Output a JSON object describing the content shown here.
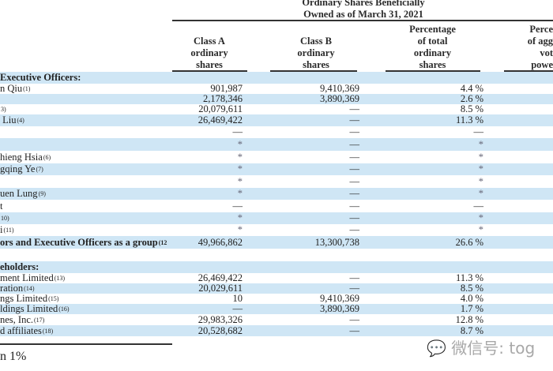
{
  "header": {
    "group_title_line1": "Ordinary Shares Beneficially",
    "group_title_line2": "Owned as of March 31, 2021",
    "columns": [
      {
        "lines": [
          "Class A",
          "ordinary",
          "shares"
        ]
      },
      {
        "lines": [
          "Class B",
          "ordinary",
          "shares"
        ]
      },
      {
        "lines": [
          "Percentage",
          "of total",
          "ordinary",
          "shares"
        ]
      },
      {
        "lines": [
          "Perce",
          "of agg",
          "vot",
          "powe"
        ]
      }
    ]
  },
  "rows": [
    {
      "name": "Executive Officers:",
      "sup": "",
      "a": "",
      "b": "",
      "p": "",
      "bold": true
    },
    {
      "name": "n Qiu",
      "sup": "(1)",
      "a": "901,987",
      "b": "9,410,369",
      "p": "4.4 %"
    },
    {
      "name": "",
      "sup": "",
      "a": "2,178,346",
      "b": "3,890,369",
      "p": "2.6 %"
    },
    {
      "name": "",
      "sup": "3)",
      "a": "20,079,611",
      "b": "—",
      "p": "8.5 %"
    },
    {
      "name": " Liu",
      "sup": "(4)",
      "a": "26,469,422",
      "b": "—",
      "p": "11.3 %"
    },
    {
      "name": "",
      "sup": "",
      "a": "—",
      "b": "—",
      "p": "—"
    },
    {
      "name": "",
      "sup": "",
      "a": "*",
      "b": "—",
      "p": "*"
    },
    {
      "name": "hieng Hsia",
      "sup": "(6)",
      "a": "*",
      "b": "—",
      "p": "*"
    },
    {
      "name": "gqing Ye",
      "sup": "(7)",
      "a": "*",
      "b": "—",
      "p": "*"
    },
    {
      "name": "",
      "sup": "",
      "a": "*",
      "b": "—",
      "p": "*"
    },
    {
      "name": "uen Lung",
      "sup": "(9)",
      "a": "*",
      "b": "—",
      "p": "*"
    },
    {
      "name": "t",
      "sup": "",
      "a": "—",
      "b": "—",
      "p": "—"
    },
    {
      "name": "",
      "sup": "10)",
      "a": "*",
      "b": "—",
      "p": "*"
    },
    {
      "name": "i",
      "sup": "(11)",
      "a": "*",
      "b": "—",
      "p": "*"
    },
    {
      "name": "ors and Executive Officers as a group",
      "sup": "(12",
      "a": "49,966,862",
      "b": "13,300,738",
      "p": "26.6 %",
      "bold": true
    },
    {
      "name": "",
      "sup": "",
      "a": "",
      "b": "",
      "p": ""
    },
    {
      "name": "eholders:",
      "sup": "",
      "a": "",
      "b": "",
      "p": "",
      "bold": true
    },
    {
      "name": "ment Limited",
      "sup": "(13)",
      "a": "26,469,422",
      "b": "—",
      "p": "11.3 %"
    },
    {
      "name": "ration",
      "sup": "(14)",
      "a": "20,029,611",
      "b": "—",
      "p": "8.5 %"
    },
    {
      "name": "ngs Limited",
      "sup": "(15)",
      "a": "10",
      "b": "9,410,369",
      "p": "4.0 %"
    },
    {
      "name": "ldings Limited",
      "sup": "(16)",
      "a": "—",
      "b": "3,890,369",
      "p": "1.7 %"
    },
    {
      "name": "nes, Inc.",
      "sup": "(17)",
      "a": "29,983,326",
      "b": "—",
      "p": "12.8 %"
    },
    {
      "name": "d affiliates",
      "sup": "(18)",
      "a": "20,528,682",
      "b": "—",
      "p": "8.7 %"
    }
  ],
  "footnote": "n 1%",
  "watermark": "微信号: tog"
}
